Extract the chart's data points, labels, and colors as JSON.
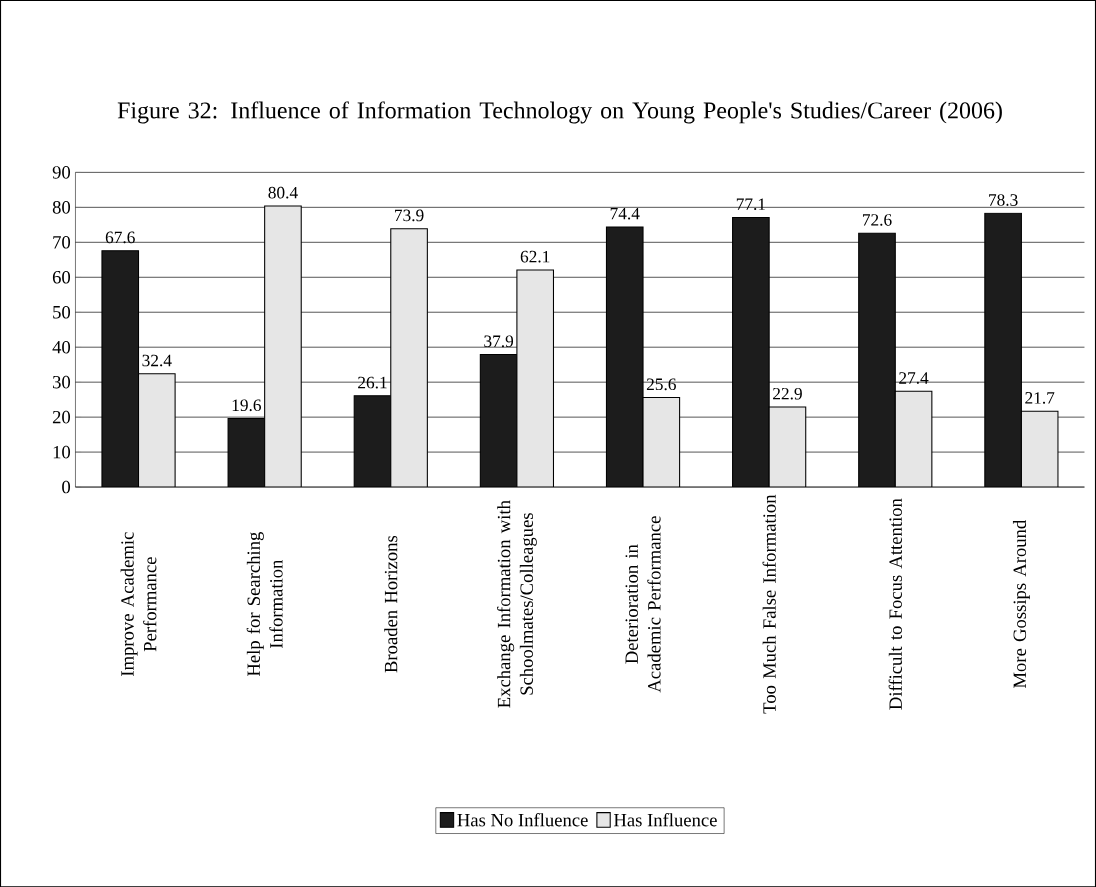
{
  "chart_data": {
    "type": "bar",
    "title": "Figure 32: Influence of Information Technology on Young People's Studies/Career (2006)",
    "categories": [
      "Improve Academic Performance",
      "Help for Searching Information",
      "Broaden Horizons",
      "Exchange Information with Schoolmates/Colleagues",
      "Deterioration in Academic Performance",
      "Too Much False Information",
      "Difficult to Focus Attention",
      "More Gossips Around"
    ],
    "series": [
      {
        "name": "Has No Influence",
        "color": "#1c1c1c",
        "values": [
          67.6,
          19.6,
          26.1,
          37.9,
          74.4,
          77.1,
          72.6,
          78.3
        ]
      },
      {
        "name": "Has Influence",
        "color": "#e6e6e6",
        "values": [
          32.4,
          80.4,
          73.9,
          62.1,
          25.6,
          22.9,
          27.4,
          21.7
        ]
      }
    ],
    "ylim": [
      0,
      90
    ],
    "yticks": [
      0,
      10,
      20,
      30,
      40,
      50,
      60,
      70,
      80,
      90
    ],
    "grid": "y",
    "legend": "bottom",
    "data_labels": true
  }
}
